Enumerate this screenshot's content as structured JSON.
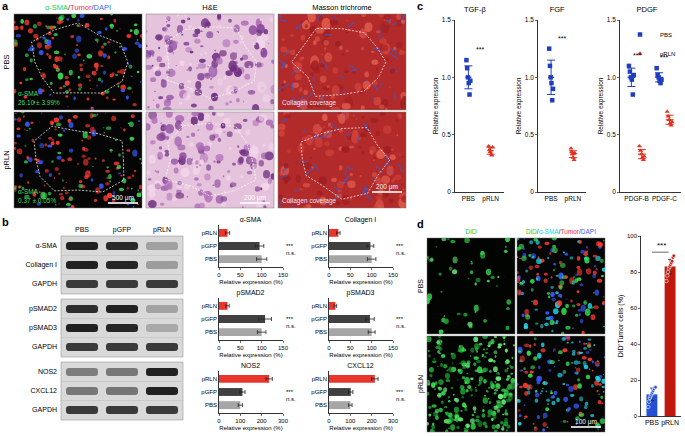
{
  "panels": {
    "a": {
      "label": "a",
      "columns": [
        "α-SMA/Tumor/DAPI",
        "H&E",
        "Masson trichrome"
      ],
      "rows": [
        "PBS",
        "pRLN"
      ],
      "stats": [
        [
          "α-SMA",
          "26.10 ± 3.99%"
        ],
        [
          "α-SMA",
          "0.37 ± 0.05%"
        ]
      ],
      "masson_note": "Collagen coverage",
      "scale_bars": [
        "500 μm",
        "200 μm",
        "200 μm"
      ]
    },
    "b": {
      "label": "b",
      "lanes": [
        "PBS",
        "pGFP",
        "pRLN"
      ],
      "blot_groups": [
        [
          "α-SMA",
          "Collagen I",
          "GAPDH"
        ],
        [
          "pSMAD2",
          "pSMAD3",
          "GAPDH"
        ],
        [
          "NOS2",
          "CXCL12",
          "GAPDH"
        ]
      ]
    },
    "c": {
      "label": "c"
    },
    "d": {
      "label": "d",
      "columns": [
        "DiD",
        "DiD/α-SMA/Tumor/DAPI"
      ],
      "rows": [
        "PBS",
        "pRLN"
      ],
      "scale_bar": "100 μm"
    }
  },
  "chart_data": [
    {
      "type": "bar",
      "orientation": "horizontal",
      "title": "α-SMA",
      "categories": [
        "PBS",
        "pGFP",
        "pRLN"
      ],
      "values": [
        100,
        95,
        20
      ],
      "error": [
        12,
        10,
        5
      ],
      "colors": [
        "#a6a6a6",
        "#404040",
        "#e8362c"
      ],
      "xlabel": "Relative expression (%)",
      "xlim": [
        0,
        150
      ],
      "xticks": [
        0,
        50,
        100,
        150
      ],
      "annotations": [
        "n.s.",
        "***"
      ]
    },
    {
      "type": "bar",
      "orientation": "horizontal",
      "title": "Collagen I",
      "categories": [
        "PBS",
        "pGFP",
        "pRLN"
      ],
      "values": [
        100,
        97,
        22
      ],
      "error": [
        10,
        8,
        4
      ],
      "colors": [
        "#a6a6a6",
        "#404040",
        "#e8362c"
      ],
      "xlabel": "Relative expression (%)",
      "xlim": [
        0,
        150
      ],
      "xticks": [
        0,
        50,
        100,
        150
      ],
      "annotations": [
        "n.s.",
        "***"
      ]
    },
    {
      "type": "bar",
      "orientation": "horizontal",
      "title": "pSMAD2",
      "categories": [
        "PBS",
        "pGFP",
        "pRLN"
      ],
      "values": [
        100,
        108,
        20
      ],
      "error": [
        10,
        15,
        4
      ],
      "colors": [
        "#a6a6a6",
        "#404040",
        "#e8362c"
      ],
      "xlabel": "Relative expression (%)",
      "xlim": [
        0,
        150
      ],
      "xticks": [
        0,
        50,
        100,
        150
      ],
      "annotations": [
        "n.s.",
        "***"
      ]
    },
    {
      "type": "bar",
      "orientation": "horizontal",
      "title": "pSMAD3",
      "categories": [
        "PBS",
        "pGFP",
        "pRLN"
      ],
      "values": [
        100,
        96,
        15
      ],
      "error": [
        8,
        10,
        3
      ],
      "colors": [
        "#a6a6a6",
        "#404040",
        "#e8362c"
      ],
      "xlabel": "Relative expression (%)",
      "xlim": [
        0,
        150
      ],
      "xticks": [
        0,
        50,
        100,
        150
      ],
      "annotations": [
        "n.s.",
        "***"
      ]
    },
    {
      "type": "bar",
      "orientation": "horizontal",
      "title": "NOS2",
      "categories": [
        "PBS",
        "pGFP",
        "pRLN"
      ],
      "values": [
        100,
        110,
        235
      ],
      "error": [
        10,
        12,
        15
      ],
      "colors": [
        "#a6a6a6",
        "#404040",
        "#e8362c"
      ],
      "xlabel": "Relative expression (%)",
      "xlim": [
        0,
        300
      ],
      "xticks": [
        0,
        100,
        200,
        300
      ],
      "annotations": [
        "n.s.",
        "***"
      ]
    },
    {
      "type": "bar",
      "orientation": "horizontal",
      "title": "CXCL12",
      "categories": [
        "PBS",
        "pGFP",
        "pRLN"
      ],
      "values": [
        100,
        102,
        215
      ],
      "error": [
        8,
        10,
        15
      ],
      "colors": [
        "#a6a6a6",
        "#404040",
        "#e8362c"
      ],
      "xlabel": "Relative expression (%)",
      "xlim": [
        0,
        300
      ],
      "xticks": [
        0,
        100,
        200,
        300
      ],
      "annotations": [
        "n.s.",
        "***"
      ]
    },
    {
      "type": "scatter",
      "title": "TGF-β",
      "ylabel": "Relative expression",
      "categories": [
        "PBS",
        "pRLN"
      ],
      "ylim": [
        0,
        1.5
      ],
      "yticks": [
        0,
        0.5,
        {
          "value": 1,
          "label": "1.0"
        },
        1.5
      ],
      "series": [
        {
          "name": "PBS",
          "color": "#1f3fbf",
          "marker": "square",
          "values": [
            [
              1.15,
              1.08,
              1.0,
              0.95,
              0.85,
              0.97
            ],
            null
          ],
          "mean": [
            1.0,
            null
          ],
          "error": [
            0.1,
            null
          ]
        },
        {
          "name": "pRLN",
          "color": "#e0301e",
          "marker": "triangle",
          "values": [
            null,
            [
              0.4,
              0.37,
              0.35,
              0.33,
              0.32,
              0.39
            ]
          ],
          "mean": [
            null,
            0.36
          ],
          "error": [
            null,
            0.03
          ]
        }
      ],
      "annotations": [
        "***"
      ]
    },
    {
      "type": "scatter",
      "title": "FGF",
      "ylabel": "Relative expression",
      "categories": [
        "PBS",
        "pRLN"
      ],
      "ylim": [
        0,
        1.5
      ],
      "yticks": [
        0,
        0.5,
        {
          "value": 1,
          "label": "1.0"
        },
        1.5
      ],
      "series": [
        {
          "name": "PBS",
          "color": "#1f3fbf",
          "marker": "square",
          "values": [
            [
              1.25,
              1.1,
              1.0,
              0.95,
              0.8,
              0.9
            ],
            null
          ],
          "mean": [
            1.0,
            null
          ],
          "error": [
            0.15,
            null
          ]
        },
        {
          "name": "pRLN",
          "color": "#e0301e",
          "marker": "triangle",
          "values": [
            null,
            [
              0.38,
              0.35,
              0.33,
              0.3,
              0.28,
              0.34
            ]
          ],
          "mean": [
            null,
            0.33
          ],
          "error": [
            null,
            0.03
          ]
        }
      ],
      "annotations": [
        "***"
      ]
    },
    {
      "type": "scatter",
      "title": "PDGF",
      "ylabel": "Relative expression",
      "categories": [
        "PDGF-B",
        "PDGF-C"
      ],
      "ylim": [
        0,
        1.5
      ],
      "yticks": [
        0,
        0.5,
        {
          "value": 1,
          "label": "1.0"
        },
        1.5
      ],
      "legend": "top right",
      "series": [
        {
          "name": "PBS",
          "color": "#1f3fbf",
          "marker": "square",
          "values": [
            [
              1.1,
              1.05,
              1.0,
              0.98,
              0.85,
              1.02
            ],
            [
              1.08,
              1.02,
              1.0,
              0.97,
              0.95,
              0.98
            ]
          ],
          "mean": [
            1.0,
            1.0
          ],
          "error": [
            0.08,
            0.04
          ]
        },
        {
          "name": "pRLN",
          "color": "#e0301e",
          "marker": "triangle",
          "values": [
            [
              0.4,
              0.36,
              0.33,
              0.3,
              0.28,
              0.31
            ],
            [
              0.7,
              0.66,
              0.63,
              0.6,
              0.58,
              0.61
            ]
          ],
          "mean": [
            0.33,
            0.63
          ],
          "error": [
            0.04,
            0.04
          ]
        }
      ],
      "annotations": [
        "***",
        "***"
      ]
    },
    {
      "type": "bar",
      "ylabel": "DiD⁺Tumor cells (%)",
      "categories": [
        "PBS",
        "pRLN"
      ],
      "values": [
        12,
        83
      ],
      "error": [
        3.5,
        4
      ],
      "points": [
        [
          5,
          8,
          10,
          11,
          12,
          13,
          14,
          15,
          16,
          16
        ],
        [
          75,
          78,
          80,
          82,
          83,
          84,
          85,
          86,
          88,
          89
        ]
      ],
      "colors": [
        "#2450d6",
        "#c0180c"
      ],
      "ylim": [
        0,
        100
      ],
      "yticks": [
        0,
        20,
        40,
        60,
        80,
        100
      ],
      "annotations": [
        "***"
      ]
    }
  ]
}
